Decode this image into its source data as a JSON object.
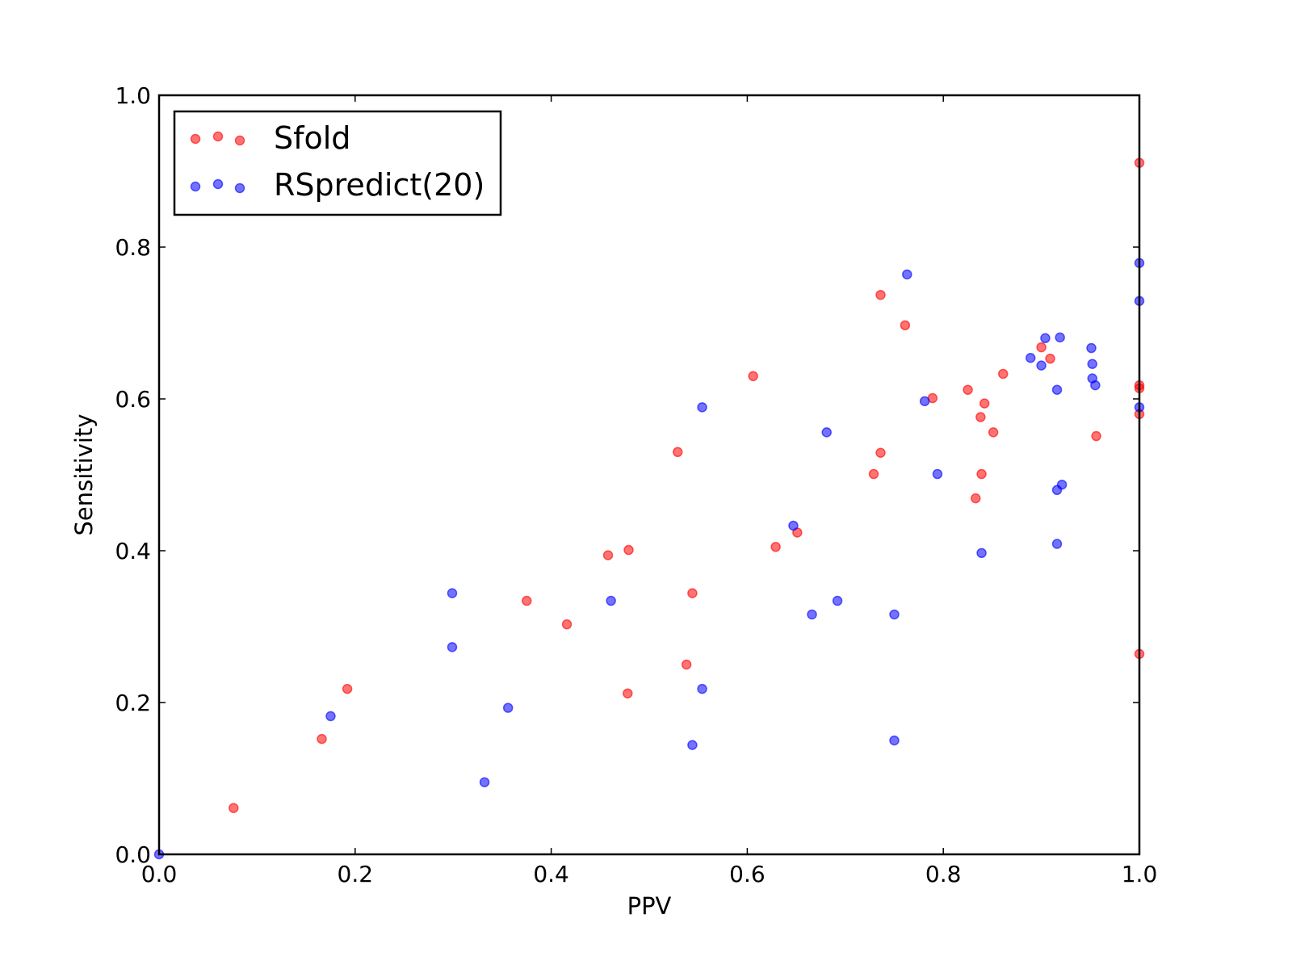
{
  "chart_data": {
    "type": "scatter",
    "xlabel": "PPV",
    "ylabel": "Sensitivity",
    "xlim": [
      0.0,
      1.0
    ],
    "ylim": [
      0.0,
      1.0
    ],
    "xticks": [
      "0.0",
      "0.2",
      "0.4",
      "0.6",
      "0.8",
      "1.0"
    ],
    "yticks": [
      "0.0",
      "0.2",
      "0.4",
      "0.6",
      "0.8",
      "1.0"
    ],
    "grid": false,
    "legend_position": "top-left",
    "series": [
      {
        "name": "Sfold",
        "color": "#ff0000",
        "points": [
          [
            0.076,
            0.061
          ],
          [
            0.166,
            0.152
          ],
          [
            0.192,
            0.218
          ],
          [
            0.375,
            0.334
          ],
          [
            0.416,
            0.303
          ],
          [
            0.458,
            0.394
          ],
          [
            0.479,
            0.401
          ],
          [
            0.478,
            0.212
          ],
          [
            0.529,
            0.53
          ],
          [
            0.538,
            0.25
          ],
          [
            0.544,
            0.344
          ],
          [
            0.606,
            0.63
          ],
          [
            0.629,
            0.405
          ],
          [
            0.651,
            0.424
          ],
          [
            0.729,
            0.501
          ],
          [
            0.736,
            0.737
          ],
          [
            0.736,
            0.529
          ],
          [
            0.761,
            0.697
          ],
          [
            0.789,
            0.601
          ],
          [
            0.825,
            0.612
          ],
          [
            0.833,
            0.469
          ],
          [
            0.838,
            0.576
          ],
          [
            0.839,
            0.501
          ],
          [
            0.842,
            0.594
          ],
          [
            0.851,
            0.556
          ],
          [
            0.861,
            0.633
          ],
          [
            0.9,
            0.668
          ],
          [
            0.909,
            0.653
          ],
          [
            0.956,
            0.551
          ],
          [
            1.0,
            0.911
          ],
          [
            1.0,
            0.618
          ],
          [
            1.0,
            0.614
          ],
          [
            1.0,
            0.58
          ],
          [
            1.0,
            0.264
          ]
        ]
      },
      {
        "name": "RSpredict(20)",
        "color": "#0000ff",
        "points": [
          [
            0.0,
            0.0
          ],
          [
            0.175,
            0.182
          ],
          [
            0.299,
            0.344
          ],
          [
            0.299,
            0.273
          ],
          [
            0.332,
            0.095
          ],
          [
            0.356,
            0.193
          ],
          [
            0.461,
            0.334
          ],
          [
            0.544,
            0.144
          ],
          [
            0.554,
            0.589
          ],
          [
            0.554,
            0.218
          ],
          [
            0.647,
            0.433
          ],
          [
            0.666,
            0.316
          ],
          [
            0.681,
            0.556
          ],
          [
            0.692,
            0.334
          ],
          [
            0.75,
            0.316
          ],
          [
            0.75,
            0.15
          ],
          [
            0.763,
            0.764
          ],
          [
            0.781,
            0.597
          ],
          [
            0.794,
            0.501
          ],
          [
            0.839,
            0.397
          ],
          [
            0.889,
            0.654
          ],
          [
            0.9,
            0.644
          ],
          [
            0.904,
            0.68
          ],
          [
            0.916,
            0.612
          ],
          [
            0.916,
            0.48
          ],
          [
            0.916,
            0.409
          ],
          [
            0.919,
            0.681
          ],
          [
            0.921,
            0.487
          ],
          [
            0.951,
            0.667
          ],
          [
            0.952,
            0.646
          ],
          [
            0.952,
            0.627
          ],
          [
            0.955,
            0.618
          ],
          [
            1.0,
            0.779
          ],
          [
            1.0,
            0.729
          ],
          [
            1.0,
            0.589
          ]
        ]
      }
    ]
  }
}
